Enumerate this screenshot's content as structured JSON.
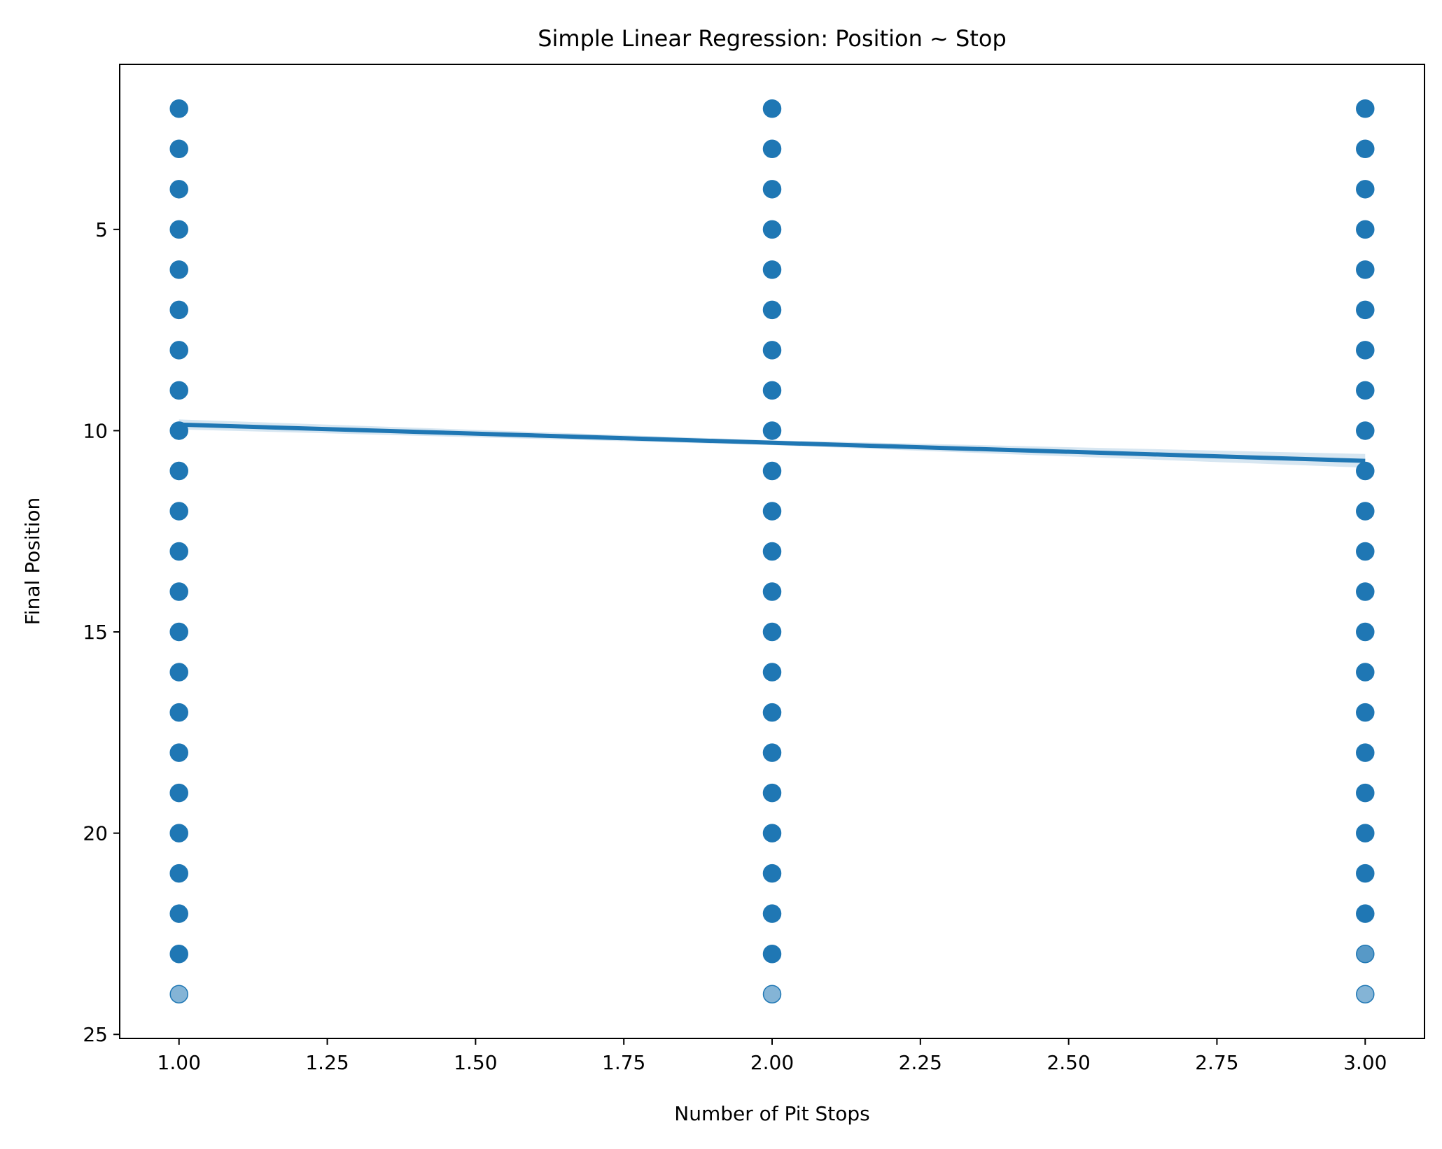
{
  "chart_data": {
    "type": "scatter",
    "title": "Simple Linear Regression: Position ~ Stop",
    "xlabel": "Number of Pit Stops",
    "ylabel": "Final Position",
    "xlim": [
      0.9,
      3.1
    ],
    "ylim": [
      25.1,
      0.9
    ],
    "y_inverted": true,
    "grid": false,
    "x_ticks": [
      1.0,
      1.25,
      1.5,
      1.75,
      2.0,
      2.25,
      2.5,
      2.75,
      3.0
    ],
    "x_tick_labels": [
      "1.00",
      "1.25",
      "1.50",
      "1.75",
      "2.00",
      "2.25",
      "2.50",
      "2.75",
      "3.00"
    ],
    "y_ticks": [
      5,
      10,
      15,
      20,
      25
    ],
    "y_tick_labels": [
      "5",
      "10",
      "15",
      "20",
      "25"
    ],
    "colors": {
      "points": "#1f77b4",
      "line": "#1f77b4",
      "band": "#1f77b4"
    },
    "series": [
      {
        "kind": "points",
        "points": [
          {
            "x": 1,
            "y": 2
          },
          {
            "x": 1,
            "y": 3
          },
          {
            "x": 1,
            "y": 4
          },
          {
            "x": 1,
            "y": 5
          },
          {
            "x": 1,
            "y": 6
          },
          {
            "x": 1,
            "y": 7
          },
          {
            "x": 1,
            "y": 8
          },
          {
            "x": 1,
            "y": 9
          },
          {
            "x": 1,
            "y": 10
          },
          {
            "x": 1,
            "y": 11
          },
          {
            "x": 1,
            "y": 12
          },
          {
            "x": 1,
            "y": 13
          },
          {
            "x": 1,
            "y": 14
          },
          {
            "x": 1,
            "y": 15
          },
          {
            "x": 1,
            "y": 16
          },
          {
            "x": 1,
            "y": 17
          },
          {
            "x": 1,
            "y": 18
          },
          {
            "x": 1,
            "y": 19
          },
          {
            "x": 1,
            "y": 20
          },
          {
            "x": 1,
            "y": 21
          },
          {
            "x": 1,
            "y": 22
          },
          {
            "x": 1,
            "y": 23
          },
          {
            "x": 1,
            "y": 24,
            "opacity": 0.55
          },
          {
            "x": 2,
            "y": 2
          },
          {
            "x": 2,
            "y": 3
          },
          {
            "x": 2,
            "y": 4
          },
          {
            "x": 2,
            "y": 5
          },
          {
            "x": 2,
            "y": 6
          },
          {
            "x": 2,
            "y": 7
          },
          {
            "x": 2,
            "y": 8
          },
          {
            "x": 2,
            "y": 9
          },
          {
            "x": 2,
            "y": 10
          },
          {
            "x": 2,
            "y": 11
          },
          {
            "x": 2,
            "y": 12
          },
          {
            "x": 2,
            "y": 13
          },
          {
            "x": 2,
            "y": 14
          },
          {
            "x": 2,
            "y": 15
          },
          {
            "x": 2,
            "y": 16
          },
          {
            "x": 2,
            "y": 17
          },
          {
            "x": 2,
            "y": 18
          },
          {
            "x": 2,
            "y": 19
          },
          {
            "x": 2,
            "y": 20
          },
          {
            "x": 2,
            "y": 21
          },
          {
            "x": 2,
            "y": 22
          },
          {
            "x": 2,
            "y": 23
          },
          {
            "x": 2,
            "y": 24,
            "opacity": 0.55
          },
          {
            "x": 3,
            "y": 2
          },
          {
            "x": 3,
            "y": 3
          },
          {
            "x": 3,
            "y": 4
          },
          {
            "x": 3,
            "y": 5
          },
          {
            "x": 3,
            "y": 6
          },
          {
            "x": 3,
            "y": 7
          },
          {
            "x": 3,
            "y": 8
          },
          {
            "x": 3,
            "y": 9
          },
          {
            "x": 3,
            "y": 10
          },
          {
            "x": 3,
            "y": 11
          },
          {
            "x": 3,
            "y": 12
          },
          {
            "x": 3,
            "y": 13
          },
          {
            "x": 3,
            "y": 14
          },
          {
            "x": 3,
            "y": 15
          },
          {
            "x": 3,
            "y": 16
          },
          {
            "x": 3,
            "y": 17
          },
          {
            "x": 3,
            "y": 18
          },
          {
            "x": 3,
            "y": 19
          },
          {
            "x": 3,
            "y": 20
          },
          {
            "x": 3,
            "y": 21
          },
          {
            "x": 3,
            "y": 22
          },
          {
            "x": 3,
            "y": 23,
            "opacity": 0.75
          },
          {
            "x": 3,
            "y": 24,
            "opacity": 0.55
          }
        ]
      },
      {
        "kind": "regression-line",
        "x": [
          1,
          3
        ],
        "y": [
          9.85,
          10.75
        ]
      },
      {
        "kind": "confidence-band",
        "x": [
          1,
          2,
          3
        ],
        "lower": [
          9.72,
          10.24,
          10.58
        ],
        "upper": [
          9.97,
          10.36,
          10.92
        ]
      }
    ]
  }
}
